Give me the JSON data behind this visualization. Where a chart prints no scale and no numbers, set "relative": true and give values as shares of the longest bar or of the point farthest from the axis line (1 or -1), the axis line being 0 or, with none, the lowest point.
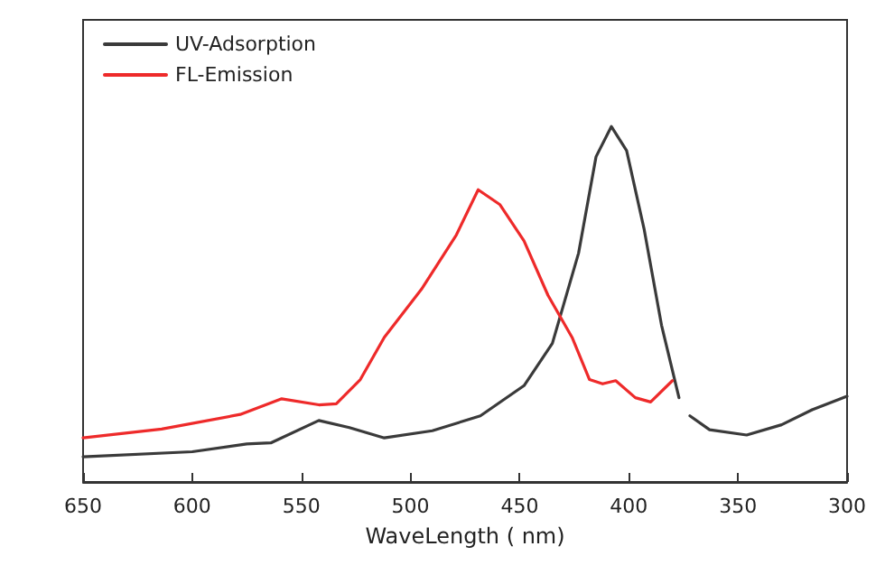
{
  "chart_data": {
    "type": "line",
    "xlabel": "WaveLength ( nm)",
    "relative": true,
    "xlim": [
      650,
      300
    ],
    "xticks": [
      650,
      600,
      550,
      500,
      450,
      400,
      350,
      300
    ],
    "tick_labels": "x",
    "grid": false,
    "legend": "top left",
    "marker": "none",
    "line_style": "solid",
    "series": [
      {
        "name": "UV-Adsorption",
        "color": "#3a3a3a",
        "x": [
          650,
          600,
          575,
          564,
          542,
          528,
          512,
          490,
          468,
          448,
          435,
          423,
          415,
          408,
          401,
          393,
          385,
          377,
          374,
          372,
          363,
          346,
          330,
          316,
          300
        ],
        "values": [
          0.071,
          0.085,
          0.107,
          0.11,
          0.173,
          0.153,
          0.124,
          0.144,
          0.186,
          0.271,
          0.39,
          0.644,
          0.915,
          1,
          0.932,
          0.712,
          0.441,
          0.237,
          null,
          0.186,
          0.147,
          0.132,
          0.161,
          0.203,
          0.241
        ]
      },
      {
        "name": "FL-Emission",
        "color": "#ee2a2a",
        "x": [
          650,
          614,
          578,
          559,
          542,
          534,
          523,
          512,
          495,
          479,
          469,
          459,
          448,
          437,
          426,
          418,
          412,
          406,
          397,
          390,
          380
        ],
        "values": [
          0.124,
          0.149,
          0.19,
          0.234,
          0.217,
          0.22,
          0.288,
          0.407,
          0.542,
          0.695,
          0.822,
          0.78,
          0.678,
          0.525,
          0.407,
          0.288,
          0.276,
          0.285,
          0.237,
          0.225,
          0.285
        ]
      }
    ]
  }
}
